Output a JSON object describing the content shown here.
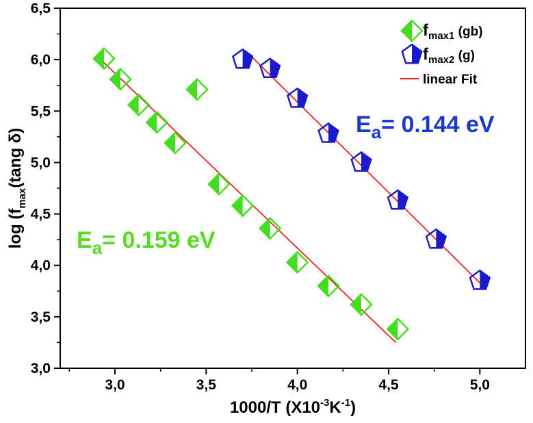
{
  "chart_data": {
    "type": "scatter",
    "xlabel": "1000/T (X10-3K-1)",
    "ylabel": "log (fmax(tang δ)",
    "xlim": [
      2.7,
      5.25
    ],
    "ylim": [
      3.0,
      6.5
    ],
    "xticks": [
      "3,0",
      "3,5",
      "4,0",
      "4,5",
      "5,0"
    ],
    "yticks": [
      "3,0",
      "3,5",
      "4,0",
      "4,5",
      "5,0",
      "5,5",
      "6,0",
      "6,5"
    ],
    "grid": false,
    "legend_position": "top-right",
    "series": [
      {
        "name": "fmax1 (gb)",
        "marker": "half-filled-diamond",
        "color": "#44dd22",
        "points": [
          {
            "x": 2.94,
            "y": 6.01
          },
          {
            "x": 3.03,
            "y": 5.81
          },
          {
            "x": 3.13,
            "y": 5.56
          },
          {
            "x": 3.23,
            "y": 5.39
          },
          {
            "x": 3.33,
            "y": 5.19
          },
          {
            "x": 3.45,
            "y": 5.71
          },
          {
            "x": 3.57,
            "y": 4.79
          },
          {
            "x": 3.7,
            "y": 4.58
          },
          {
            "x": 3.85,
            "y": 4.36
          },
          {
            "x": 4.0,
            "y": 4.03
          },
          {
            "x": 4.17,
            "y": 3.8
          },
          {
            "x": 4.35,
            "y": 3.62
          },
          {
            "x": 4.55,
            "y": 3.38
          }
        ]
      },
      {
        "name": "fmax2 (g)",
        "marker": "half-filled-pentagon",
        "color": "#1a1acc",
        "points": [
          {
            "x": 3.7,
            "y": 6.0
          },
          {
            "x": 3.85,
            "y": 5.91
          },
          {
            "x": 4.0,
            "y": 5.62
          },
          {
            "x": 4.17,
            "y": 5.28
          },
          {
            "x": 4.35,
            "y": 5.0
          },
          {
            "x": 4.55,
            "y": 4.63
          },
          {
            "x": 4.76,
            "y": 4.25
          },
          {
            "x": 5.0,
            "y": 3.85
          }
        ]
      }
    ],
    "fits": [
      {
        "name": "linear Fit",
        "color": "#ee2222",
        "x": [
          2.94,
          4.54
        ],
        "y": [
          5.97,
          3.25
        ]
      },
      {
        "name": "linear Fit",
        "color": "#ee2222",
        "x": [
          3.72,
          5.0
        ],
        "y": [
          6.08,
          3.83
        ]
      }
    ],
    "legend": [
      {
        "label_main": "f",
        "label_sub": "max1",
        "label_rest": " (gb)",
        "marker": "half-filled-diamond",
        "color": "#44dd22"
      },
      {
        "label_main": "f",
        "label_sub": "max2",
        "label_rest": " (g)",
        "marker": "half-filled-pentagon",
        "color": "#1a1acc"
      },
      {
        "label_main": "linear Fit",
        "label_sub": "",
        "label_rest": "",
        "marker": "line",
        "color": "#ee2222"
      }
    ],
    "annotations": [
      {
        "main": "E",
        "sub": "a",
        "rest": "= 0.159 eV",
        "color": "#55dd22"
      },
      {
        "main": "E",
        "sub": "a",
        "rest": "= 0.144 eV",
        "color": "#1a3acc"
      }
    ]
  },
  "axis_title_y": {
    "main": "log (f",
    "sub": "max",
    "rest": "(tang δ)"
  },
  "axis_title_x": {
    "main": "1000/T (X10",
    "sup1": "-3",
    "mid": "K",
    "sup2": "-1",
    "rest": ")"
  }
}
